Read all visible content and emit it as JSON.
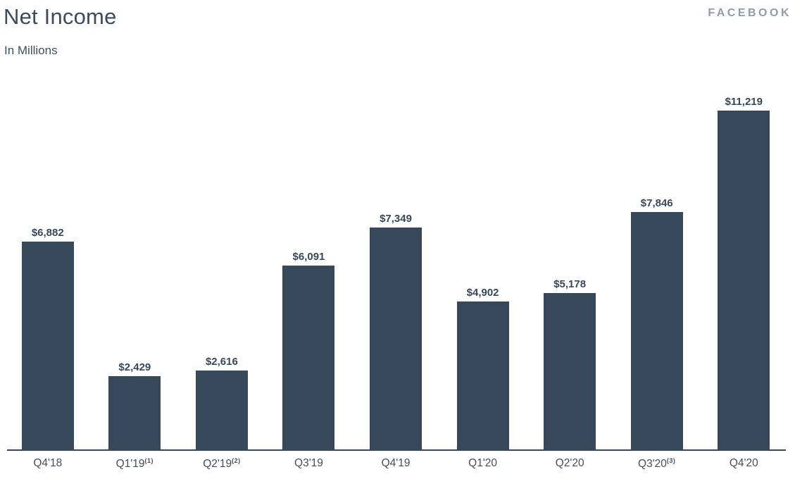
{
  "header": {
    "title": "Net Income",
    "subtitle": "In Millions",
    "logo": "FACEBOOK"
  },
  "colors": {
    "bar": "#36485a",
    "title_text": "#3b4c5e",
    "value_label_text": "#36485a",
    "tick_label_text": "#3f4f60",
    "logo_text": "#8d9dad",
    "axis_line": "#36485a",
    "background": "#ffffff"
  },
  "chart_data": {
    "type": "bar",
    "title": "Net Income",
    "subtitle": "In Millions",
    "unit": "USD millions",
    "categories": [
      "Q4'18",
      "Q1'19",
      "Q2'19",
      "Q3'19",
      "Q4'19",
      "Q1'20",
      "Q2'20",
      "Q3'20",
      "Q4'20"
    ],
    "category_superscripts": [
      "",
      "(1)",
      "(2)",
      "",
      "",
      "",
      "",
      "(3)",
      ""
    ],
    "values": [
      6882,
      2429,
      2616,
      6091,
      7349,
      4902,
      5178,
      7846,
      11219
    ],
    "value_labels": [
      "$6,882",
      "$2,429",
      "$2,616",
      "$6,091",
      "$7,349",
      "$4,902",
      "$5,178",
      "$7,846",
      "$11,219"
    ],
    "ylim": [
      0,
      12000
    ],
    "xlabel": "",
    "ylabel": "",
    "grid": false,
    "legend": false,
    "bar_color": "#36485a"
  }
}
